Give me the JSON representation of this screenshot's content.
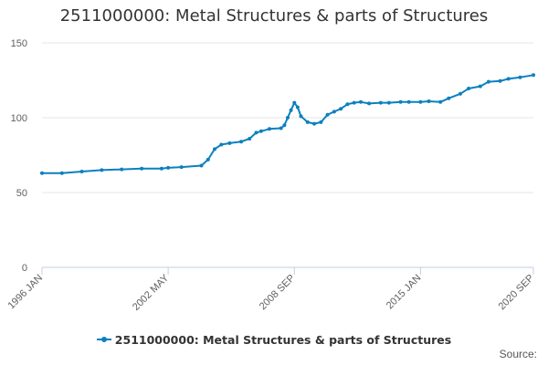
{
  "chart_data": {
    "type": "line",
    "title": "2511000000: Metal Structures & parts of Structures",
    "xlabel": "",
    "ylabel": "",
    "ylim": [
      0,
      150
    ],
    "yticks": [
      0,
      50,
      100,
      150
    ],
    "x_range": [
      "1996 JAN",
      "2020 SEP"
    ],
    "xtick_labels": [
      "1996 JAN",
      "2002 MAY",
      "2008 SEP",
      "2015 JAN",
      "2020 SEP"
    ],
    "grid": true,
    "legend_position": "bottom-center",
    "series": [
      {
        "name": "2511000000: Metal Structures & parts of Structures",
        "color": "#0c80bf",
        "x": [
          "1996 JAN",
          "1997 JAN",
          "1998 JAN",
          "1999 JAN",
          "2000 JAN",
          "2001 JAN",
          "2002 JAN",
          "2002 MAY",
          "2003 JAN",
          "2004 JAN",
          "2004 MAY",
          "2004 SEP",
          "2005 JAN",
          "2005 JUN",
          "2006 JAN",
          "2006 JUN",
          "2006 OCT",
          "2007 JAN",
          "2007 JUN",
          "2008 JAN",
          "2008 MAR",
          "2008 MAY",
          "2008 JUL",
          "2008 SEP",
          "2008 NOV",
          "2009 JAN",
          "2009 MAY",
          "2009 SEP",
          "2010 JAN",
          "2010 MAY",
          "2010 SEP",
          "2011 JAN",
          "2011 MAY",
          "2011 SEP",
          "2012 JAN",
          "2012 JUN",
          "2013 JAN",
          "2013 JUN",
          "2014 JAN",
          "2014 JUN",
          "2015 JAN",
          "2015 JUN",
          "2016 JAN",
          "2016 JUN",
          "2017 JAN",
          "2017 JUN",
          "2018 JAN",
          "2018 JUN",
          "2019 JAN",
          "2019 JUN",
          "2020 JAN",
          "2020 SEP"
        ],
        "values": [
          63,
          63,
          64,
          65,
          65.5,
          66,
          66,
          66.5,
          67,
          68,
          72,
          79,
          82,
          83,
          84,
          86,
          90,
          91,
          92.5,
          93,
          95,
          100,
          105,
          110,
          107,
          101,
          97,
          96,
          97,
          102,
          104,
          106,
          109,
          110,
          110.5,
          109.5,
          110,
          110,
          110.5,
          110.5,
          110.5,
          111,
          110.5,
          113,
          116,
          119.5,
          121,
          124,
          124.5,
          126,
          127,
          128.5
        ]
      }
    ]
  },
  "legend": {
    "label": "2511000000: Metal Structures & parts of Structures"
  },
  "source": {
    "label": "Source:"
  }
}
